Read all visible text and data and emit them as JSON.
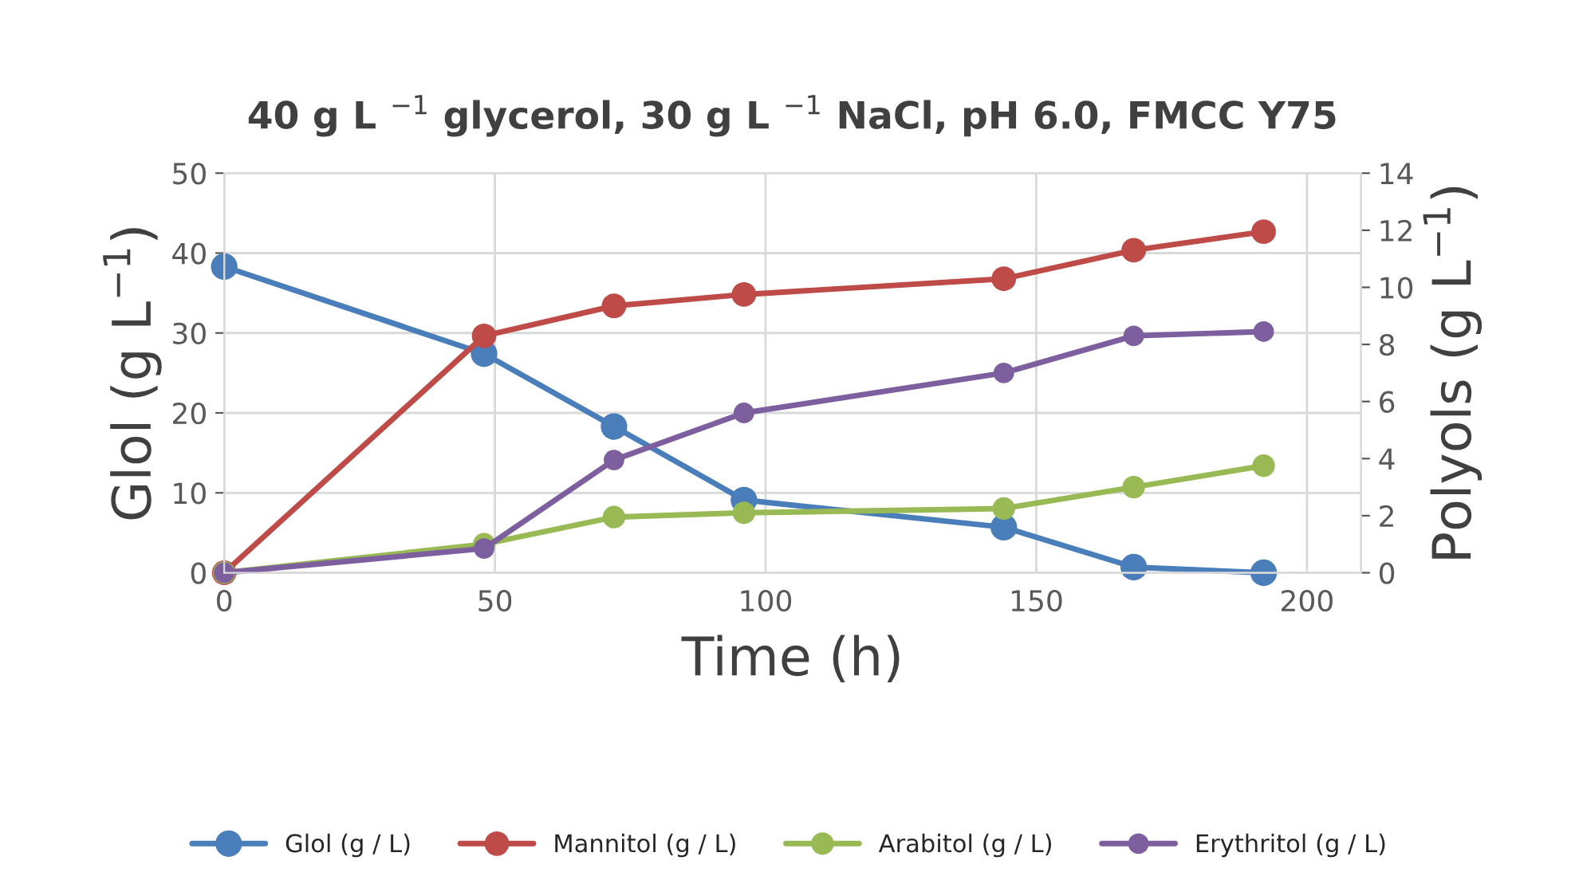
{
  "chart_data": {
    "type": "line",
    "title": "40 g L $^{−1}$ glycerol, 30 g L $^{−1}$ NaCl, pH 6.0, FMCC Y75",
    "xlabel": "Time (h)",
    "ylabel": "Glol (g L$^{−1}$)",
    "y2label": "Polyols (g L$^{−1}$)",
    "x": [
      0,
      48,
      72,
      96,
      144,
      168,
      192
    ],
    "series": [
      {
        "name": "Glol (g / L)",
        "color": "#4a7ebb",
        "values": [
          38.3,
          27.4,
          18.3,
          9.1,
          5.7,
          0.7,
          0
        ]
      },
      {
        "name": "Mannitol (g / L)",
        "color": "#be4b48",
        "axis": "y2",
        "values": [
          0,
          8.3,
          9.35,
          9.75,
          10.3,
          11.3,
          11.95
        ]
      },
      {
        "name": "Arabitol (g / L)",
        "color": "#98b954",
        "axis": "y2",
        "values": [
          0,
          1.0,
          1.95,
          2.1,
          2.25,
          3.0,
          3.75
        ]
      },
      {
        "name": "Erythritol (g / L)",
        "color": "#7d5fa0",
        "axis": "y2",
        "values": [
          0,
          0.85,
          3.95,
          5.6,
          7.0,
          8.3,
          8.45
        ]
      }
    ],
    "xlim": [
      0,
      210
    ],
    "xticks": [
      0,
      50,
      100,
      150,
      200
    ],
    "ylim": [
      0,
      50
    ],
    "yticks": [
      0,
      10,
      20,
      30,
      40,
      50
    ],
    "y2lim": [
      0,
      14
    ],
    "y2ticks": [
      0,
      2,
      4,
      6,
      8,
      10,
      12,
      14
    ],
    "grid": true,
    "legend": "bottom",
    "marker": "circle",
    "line_style": "solid"
  }
}
